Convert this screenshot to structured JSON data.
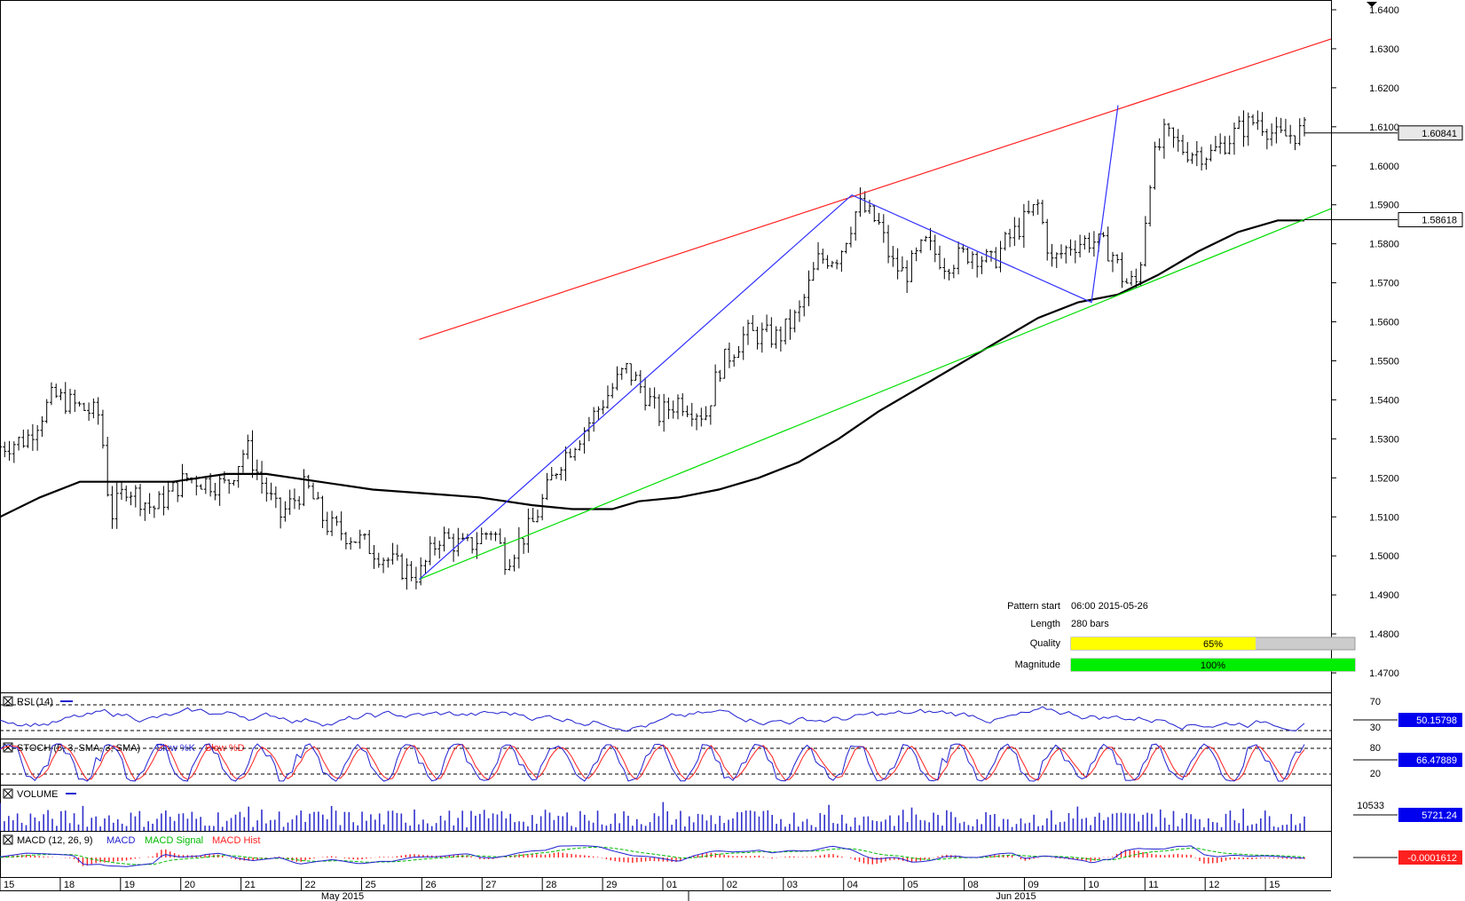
{
  "chart_data": {
    "type": "candlestick",
    "title": "",
    "price_axis": {
      "ylim": [
        1.465,
        1.6425
      ],
      "ticks": [
        "1.6400",
        "1.6300",
        "1.6200",
        "1.6100",
        "1.6000",
        "1.5900",
        "1.5800",
        "1.5700",
        "1.5600",
        "1.5500",
        "1.5400",
        "1.5300",
        "1.5200",
        "1.5100",
        "1.5000",
        "1.4900",
        "1.4800",
        "1.4700"
      ]
    },
    "x_axis": {
      "day_labels": [
        "15",
        "18",
        "19",
        "20",
        "21",
        "22",
        "25",
        "26",
        "27",
        "28",
        "29",
        "01",
        "02",
        "03",
        "04",
        "05",
        "08",
        "09",
        "10",
        "11",
        "12",
        "15"
      ],
      "month_labels": [
        "May 2015",
        "Jun 2015"
      ]
    },
    "last_price_label": "1.60841",
    "ma_label": "1.58618",
    "price_path": [
      {
        "x": 0,
        "y": 1.528
      },
      {
        "x": 2,
        "y": 1.53
      },
      {
        "x": 4,
        "y": 1.541
      },
      {
        "x": 6,
        "y": 1.538
      },
      {
        "x": 7.5,
        "y": 1.536
      },
      {
        "x": 8.3,
        "y": 1.51
      },
      {
        "x": 9.5,
        "y": 1.518
      },
      {
        "x": 11.5,
        "y": 1.512
      },
      {
        "x": 14,
        "y": 1.52
      },
      {
        "x": 17,
        "y": 1.518
      },
      {
        "x": 18.5,
        "y": 1.528
      },
      {
        "x": 19.5,
        "y": 1.52
      },
      {
        "x": 21,
        "y": 1.51
      },
      {
        "x": 23,
        "y": 1.518
      },
      {
        "x": 24.5,
        "y": 1.508
      },
      {
        "x": 27,
        "y": 1.504
      },
      {
        "x": 30,
        "y": 1.497
      },
      {
        "x": 31.5,
        "y": 1.495
      },
      {
        "x": 33,
        "y": 1.505
      },
      {
        "x": 35,
        "y": 1.502
      },
      {
        "x": 37,
        "y": 1.507
      },
      {
        "x": 38,
        "y": 1.499
      },
      {
        "x": 40,
        "y": 1.508
      },
      {
        "x": 42,
        "y": 1.524
      },
      {
        "x": 44,
        "y": 1.533
      },
      {
        "x": 47,
        "y": 1.548
      },
      {
        "x": 48,
        "y": 1.544
      },
      {
        "x": 49.5,
        "y": 1.536
      },
      {
        "x": 51,
        "y": 1.54
      },
      {
        "x": 53,
        "y": 1.536
      },
      {
        "x": 54,
        "y": 1.548
      },
      {
        "x": 56,
        "y": 1.557
      },
      {
        "x": 58.5,
        "y": 1.556
      },
      {
        "x": 60,
        "y": 1.562
      },
      {
        "x": 61.5,
        "y": 1.576
      },
      {
        "x": 63,
        "y": 1.577
      },
      {
        "x": 64.5,
        "y": 1.59
      },
      {
        "x": 66,
        "y": 1.585
      },
      {
        "x": 67,
        "y": 1.575
      },
      {
        "x": 68,
        "y": 1.572
      },
      {
        "x": 69.5,
        "y": 1.58
      },
      {
        "x": 71,
        "y": 1.575
      },
      {
        "x": 73,
        "y": 1.578
      },
      {
        "x": 74.5,
        "y": 1.575
      },
      {
        "x": 75.5,
        "y": 1.58
      },
      {
        "x": 76.5,
        "y": 1.584
      },
      {
        "x": 78,
        "y": 1.59
      },
      {
        "x": 79,
        "y": 1.575
      },
      {
        "x": 80.5,
        "y": 1.58
      },
      {
        "x": 82,
        "y": 1.581
      },
      {
        "x": 83.5,
        "y": 1.578
      },
      {
        "x": 84.5,
        "y": 1.57
      },
      {
        "x": 85.5,
        "y": 1.57
      },
      {
        "x": 86.5,
        "y": 1.6
      },
      {
        "x": 87.5,
        "y": 1.608
      },
      {
        "x": 89,
        "y": 1.604
      },
      {
        "x": 91,
        "y": 1.603
      },
      {
        "x": 93,
        "y": 1.609
      },
      {
        "x": 94.5,
        "y": 1.612
      },
      {
        "x": 96,
        "y": 1.607
      },
      {
        "x": 98,
        "y": 1.609
      }
    ],
    "moving_average": [
      {
        "x": 0,
        "y": 1.51
      },
      {
        "x": 3,
        "y": 1.515
      },
      {
        "x": 6,
        "y": 1.519
      },
      {
        "x": 9,
        "y": 1.519
      },
      {
        "x": 13,
        "y": 1.519
      },
      {
        "x": 17,
        "y": 1.521
      },
      {
        "x": 20,
        "y": 1.521
      },
      {
        "x": 24,
        "y": 1.519
      },
      {
        "x": 28,
        "y": 1.517
      },
      {
        "x": 32,
        "y": 1.516
      },
      {
        "x": 36,
        "y": 1.515
      },
      {
        "x": 40,
        "y": 1.513
      },
      {
        "x": 43,
        "y": 1.512
      },
      {
        "x": 46,
        "y": 1.512
      },
      {
        "x": 48,
        "y": 1.514
      },
      {
        "x": 51,
        "y": 1.515
      },
      {
        "x": 54,
        "y": 1.517
      },
      {
        "x": 57,
        "y": 1.52
      },
      {
        "x": 60,
        "y": 1.524
      },
      {
        "x": 63,
        "y": 1.53
      },
      {
        "x": 66,
        "y": 1.537
      },
      {
        "x": 70,
        "y": 1.545
      },
      {
        "x": 74,
        "y": 1.553
      },
      {
        "x": 78,
        "y": 1.561
      },
      {
        "x": 81,
        "y": 1.565
      },
      {
        "x": 84,
        "y": 1.567
      },
      {
        "x": 87,
        "y": 1.572
      },
      {
        "x": 90,
        "y": 1.578
      },
      {
        "x": 93,
        "y": 1.583
      },
      {
        "x": 96,
        "y": 1.586
      },
      {
        "x": 98,
        "y": 1.586
      }
    ],
    "pattern": {
      "resistance_line": [
        {
          "x": 31.5,
          "y": 1.5555
        },
        {
          "x": 100,
          "y": 1.6325
        }
      ],
      "support_line": [
        {
          "x": 31.5,
          "y": 1.494
        },
        {
          "x": 100,
          "y": 1.589
        }
      ],
      "zigzag": [
        {
          "x": 31.5,
          "y": 1.494
        },
        {
          "x": 64,
          "y": 1.5925
        },
        {
          "x": 82,
          "y": 1.565
        },
        {
          "x": 84,
          "y": 1.6155
        }
      ]
    },
    "indicators": [
      {
        "name": "RSI (14)",
        "levels": [
          "70",
          "30"
        ],
        "value_label": "50.15798",
        "series": "rsi"
      },
      {
        "name": "STOCH (5, 3, SMA, 3, SMA)",
        "legend": [
          "Slow %K",
          "Slow %D"
        ],
        "levels": [
          "80",
          "20"
        ],
        "value_label": "66.47889",
        "series": "stoch"
      },
      {
        "name": "VOLUME",
        "level_label": "10533",
        "value_label": "5721.24",
        "series": "volume"
      },
      {
        "name": "MACD (12, 26, 9)",
        "legend": [
          "MACD",
          "MACD Signal",
          "MACD Hist"
        ],
        "value_label": "-0.0001612",
        "series": "macd"
      }
    ]
  },
  "pattern_info": {
    "pattern_start_label": "Pattern start",
    "pattern_start_value": "06:00 2015-05-26",
    "length_label": "Length",
    "length_value": "280 bars",
    "quality_label": "Quality",
    "quality_value": "65%",
    "quality_fraction": 0.65,
    "magnitude_label": "Magnitude",
    "magnitude_value": "100%",
    "magnitude_fraction": 1.0
  },
  "colors": {
    "resistance": "#ff2020",
    "support": "#00dd00",
    "zigzag": "#3030ff",
    "ma": "#000000",
    "rsi": "#2020d0",
    "stoch_k": "#2020d0",
    "stoch_d": "#ff2020",
    "volume": "#3030cc",
    "macd": "#2020d0",
    "macd_signal": "#00bb00",
    "macd_hist": "#ff2020",
    "quality_fill": "#ffff00",
    "magnitude_fill": "#00ee00",
    "value_box": "#0000ee"
  }
}
